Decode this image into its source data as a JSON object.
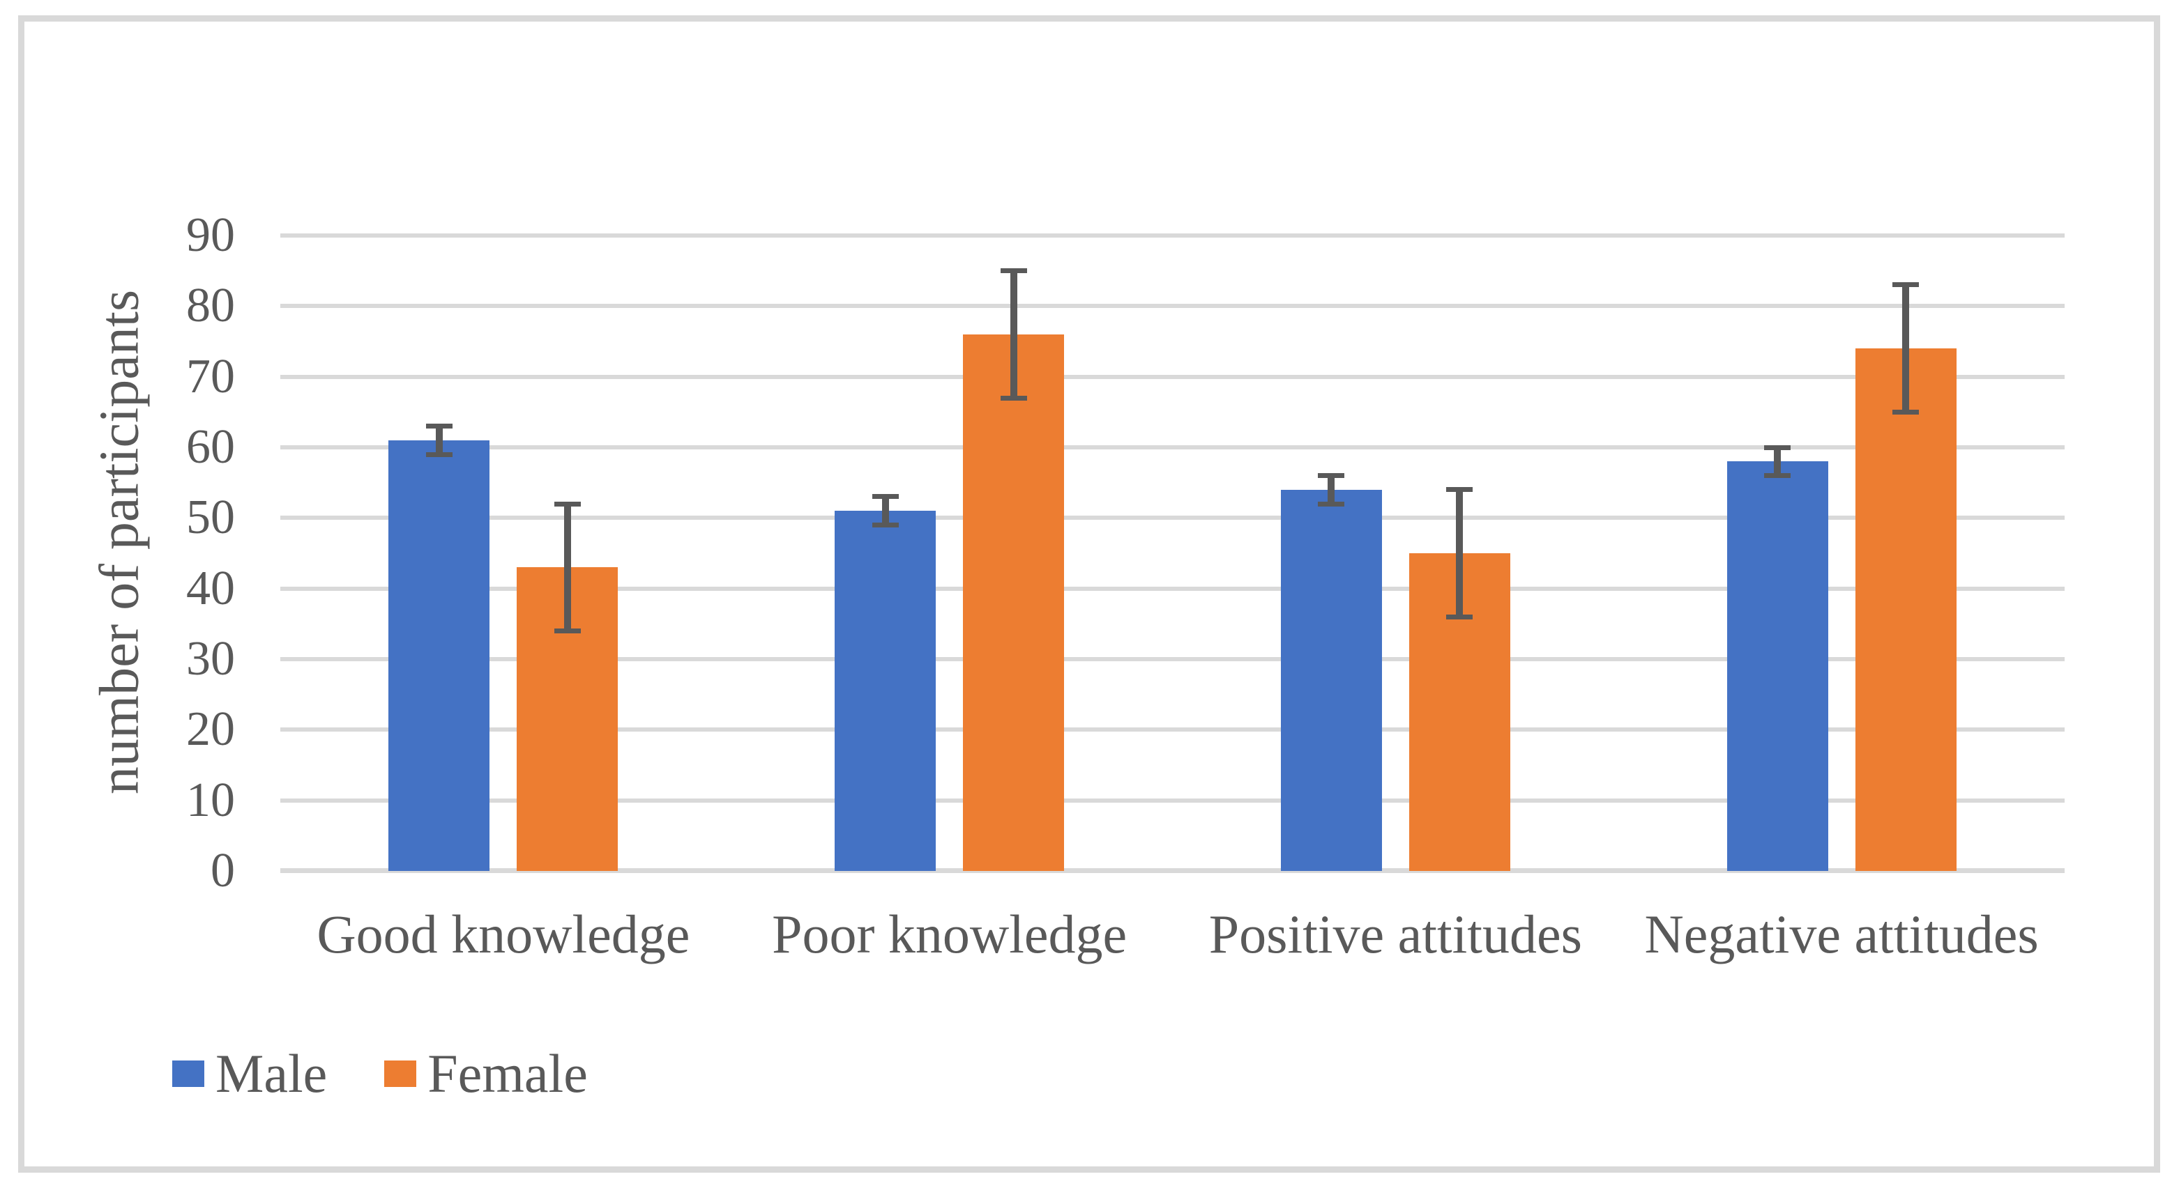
{
  "chart_data": {
    "type": "bar",
    "title": "",
    "ylabel": "number of participants",
    "xlabel": "",
    "ylim": [
      0,
      90
    ],
    "ytick_step": 10,
    "grid": true,
    "legend_position": "bottom-left",
    "categories": [
      "Good knowledge",
      "Poor knowledge",
      "Positive attitudes",
      "Negative attitudes"
    ],
    "series": [
      {
        "name": "Male",
        "color": "#4472C4",
        "values": [
          61,
          51,
          54,
          58
        ],
        "error": [
          2,
          2,
          2,
          2
        ]
      },
      {
        "name": "Female",
        "color": "#ED7D31",
        "values": [
          43,
          76,
          45,
          74
        ],
        "error": [
          9,
          9,
          9,
          9
        ]
      }
    ],
    "error_bar_color": "#595959",
    "gridline_color": "#D9D9D9",
    "axis_line_color": "#D9D9D9",
    "text_color": "#595959",
    "frame_color": "#D9D9D9",
    "yticks": [
      "0",
      "10",
      "20",
      "30",
      "40",
      "50",
      "60",
      "70",
      "80",
      "90"
    ]
  }
}
